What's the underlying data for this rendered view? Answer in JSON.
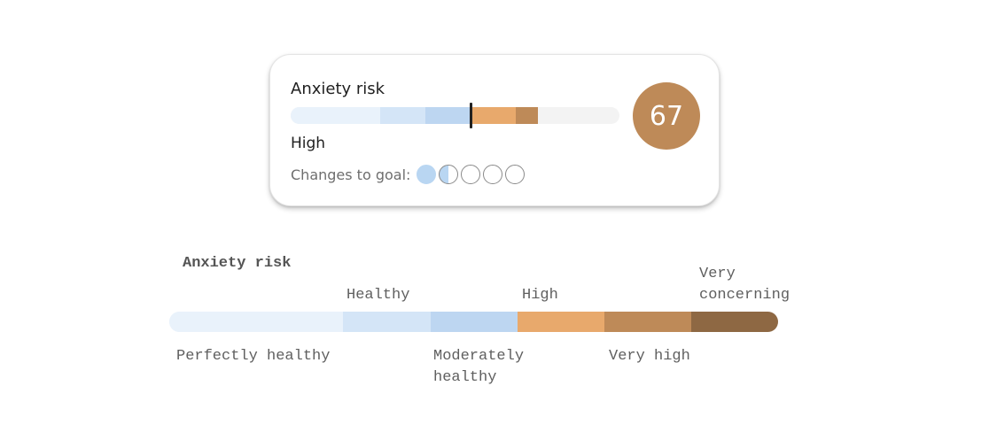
{
  "card": {
    "title": "Anxiety risk",
    "level": "High",
    "score": "67",
    "score_color": "#be8a58",
    "goal_label": "Changes to goal:",
    "goal_progress": {
      "completed": 1.5,
      "total": 5
    },
    "marker_position_fraction": 0.55
  },
  "scale": {
    "title": "Anxiety risk",
    "levels": [
      {
        "label": "Perfectly healthy",
        "color": "#e9f2fb"
      },
      {
        "label": "Healthy",
        "color": "#d4e5f7"
      },
      {
        "label": "Moderately healthy",
        "color": "#bdd6f1"
      },
      {
        "label": "High",
        "color": "#e8a96c"
      },
      {
        "label": "Very high",
        "color": "#be8a58"
      },
      {
        "label": "Very concerning",
        "color": "#8e6843"
      }
    ]
  }
}
